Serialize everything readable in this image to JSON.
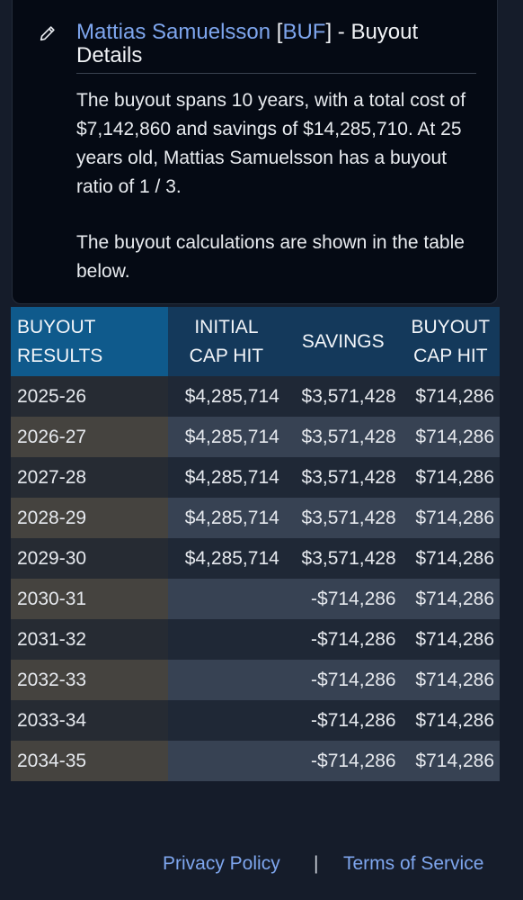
{
  "header": {
    "player_name": "Mattias Samuelsson",
    "team": "BUF",
    "title_suffix": " - Buyout Details",
    "summary": "The buyout spans 10 years, with a total cost of $7,142,860 and savings of $14,285,710. At 25 years old, Mattias Samuelsson has a buyout ratio of 1 / 3.",
    "note": "The buyout calculations are shown in the table below."
  },
  "table": {
    "headers": [
      "BUYOUT RESULTS",
      "INITIAL CAP HIT",
      "SAVINGS",
      "BUYOUT CAP HIT"
    ],
    "rows": [
      {
        "year": "2025-26",
        "initial": "$4,285,714",
        "savings": "$3,571,428",
        "buyout": "$714,286"
      },
      {
        "year": "2026-27",
        "initial": "$4,285,714",
        "savings": "$3,571,428",
        "buyout": "$714,286"
      },
      {
        "year": "2027-28",
        "initial": "$4,285,714",
        "savings": "$3,571,428",
        "buyout": "$714,286"
      },
      {
        "year": "2028-29",
        "initial": "$4,285,714",
        "savings": "$3,571,428",
        "buyout": "$714,286"
      },
      {
        "year": "2029-30",
        "initial": "$4,285,714",
        "savings": "$3,571,428",
        "buyout": "$714,286"
      },
      {
        "year": "2030-31",
        "initial": "",
        "savings": "-$714,286",
        "buyout": "$714,286"
      },
      {
        "year": "2031-32",
        "initial": "",
        "savings": "-$714,286",
        "buyout": "$714,286"
      },
      {
        "year": "2032-33",
        "initial": "",
        "savings": "-$714,286",
        "buyout": "$714,286"
      },
      {
        "year": "2033-34",
        "initial": "",
        "savings": "-$714,286",
        "buyout": "$714,286"
      },
      {
        "year": "2034-35",
        "initial": "",
        "savings": "-$714,286",
        "buyout": "$714,286"
      }
    ]
  },
  "footer": {
    "privacy": "Privacy Policy",
    "separator": "|",
    "terms": "Terms of Service"
  },
  "colors": {
    "link": "#7ea6ee",
    "header_first": "#0f5a8c",
    "header_rest": "#14395b"
  }
}
